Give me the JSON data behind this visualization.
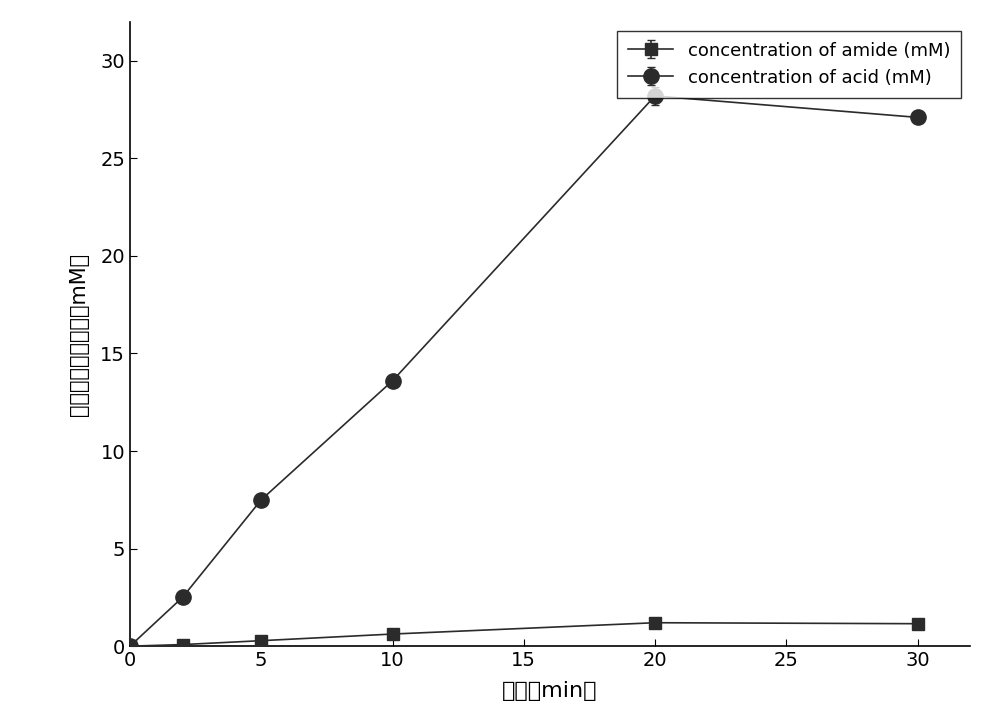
{
  "amide_x": [
    0,
    2,
    5,
    10,
    20,
    30
  ],
  "amide_y": [
    0,
    0.08,
    0.28,
    0.62,
    1.2,
    1.15
  ],
  "amide_yerr": [
    0,
    0,
    0,
    0,
    0,
    0
  ],
  "acid_x": [
    0,
    2,
    5,
    10,
    20,
    30
  ],
  "acid_y": [
    0,
    2.5,
    7.5,
    13.6,
    28.2,
    27.1
  ],
  "acid_yerr": [
    0,
    0,
    0,
    0,
    0.45,
    0
  ],
  "xlabel": "时间（min）",
  "ylabel": "酬胺和罺酸的浓度（mM）",
  "legend_amide": "concentration of amide (mM)",
  "legend_acid": "concentration of acid (mM)",
  "xlim": [
    0,
    32
  ],
  "ylim": [
    0,
    32
  ],
  "xticks": [
    0,
    5,
    10,
    15,
    20,
    25,
    30
  ],
  "yticks": [
    0,
    5,
    10,
    15,
    20,
    25,
    30
  ],
  "line_color": "#2b2b2b",
  "marker_color": "#2b2b2b",
  "background_color": "#ffffff",
  "figsize": [
    10.0,
    7.26
  ],
  "dpi": 100
}
